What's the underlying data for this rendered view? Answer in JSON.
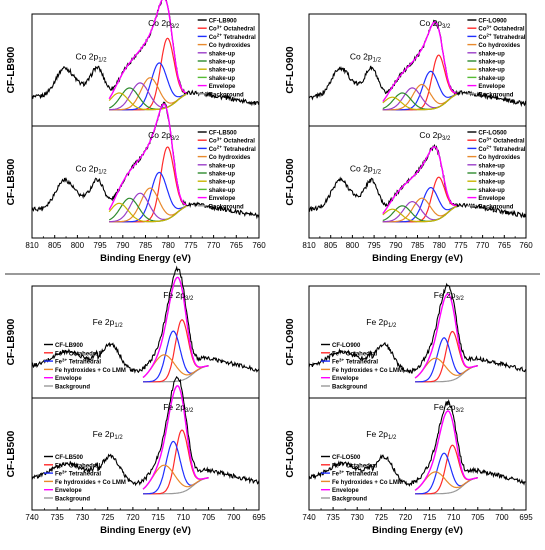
{
  "colors": {
    "data": "#000000",
    "octahedral": "#ff2a2a",
    "tetrahedral": "#1f2fff",
    "hydroxides": "#e8892c",
    "shakeup": [
      "#9b3fc8",
      "#2e8b2e",
      "#c8b400",
      "#55bb33"
    ],
    "envelope": "#ff00ff",
    "background": "#9a9a9a"
  },
  "chart_data": [
    {
      "type": "line",
      "element": "Co",
      "xlabel": "Binding Energy (eV)",
      "xlim": [
        810,
        760
      ],
      "ticks": [
        "810",
        "805",
        "800",
        "795",
        "790",
        "785",
        "780",
        "775",
        "770",
        "765",
        "760"
      ],
      "panels": [
        {
          "ylabel": "CF-LB900",
          "peak_labels": [
            {
              "text": "Co 2p",
              "sub": "1/2",
              "x": 797
            },
            {
              "text": "Co 2p",
              "sub": "3/2",
              "x": 781
            }
          ],
          "legend": [
            "CF-LB900",
            "Co3+ Octahedral",
            "Co2+ Tetrahedral",
            "Co hydroxides",
            "shake-up",
            "shake-up",
            "shake-up",
            "shake-up",
            "Envelope",
            "Background"
          ],
          "peaks": [
            {
              "role": "octahedral",
              "center": 780.2,
              "width": 1.5,
              "height": 0.82
            },
            {
              "role": "tetrahedral",
              "center": 782.0,
              "width": 1.8,
              "height": 0.55
            },
            {
              "role": "hydroxides",
              "center": 784.0,
              "width": 2.0,
              "height": 0.38
            },
            {
              "role": "shakeup1",
              "center": 786.2,
              "width": 2.0,
              "height": 0.32
            },
            {
              "role": "shakeup2",
              "center": 788.5,
              "width": 2.0,
              "height": 0.26
            },
            {
              "role": "shakeup3",
              "center": 790.8,
              "width": 2.0,
              "height": 0.2
            }
          ]
        },
        {
          "ylabel": "CF-LB500",
          "peak_labels": [
            {
              "text": "Co 2p",
              "sub": "1/2",
              "x": 797
            },
            {
              "text": "Co 2p",
              "sub": "3/2",
              "x": 781
            }
          ],
          "legend": [
            "CF-LB500",
            "Co3+ Octahedral",
            "Co2+ Tetrahedral",
            "Co hydroxides",
            "shake-up",
            "shake-up",
            "shake-up",
            "shake-up",
            "Envelope",
            "Background"
          ],
          "peaks": [
            {
              "role": "octahedral",
              "center": 780.2,
              "width": 1.5,
              "height": 0.86
            },
            {
              "role": "tetrahedral",
              "center": 782.0,
              "width": 1.8,
              "height": 0.58
            },
            {
              "role": "hydroxides",
              "center": 784.0,
              "width": 2.0,
              "height": 0.4
            },
            {
              "role": "shakeup1",
              "center": 786.2,
              "width": 2.0,
              "height": 0.34
            },
            {
              "role": "shakeup2",
              "center": 788.5,
              "width": 2.0,
              "height": 0.28
            },
            {
              "role": "shakeup3",
              "center": 790.8,
              "width": 2.0,
              "height": 0.22
            }
          ]
        },
        {
          "ylabel": "CF-LO900",
          "peak_labels": [
            {
              "text": "Co 2p",
              "sub": "1/2",
              "x": 797
            },
            {
              "text": "Co 2p",
              "sub": "3/2",
              "x": 781
            }
          ],
          "legend": [
            "CF-LO900",
            "Co3+ Octahedral",
            "Co2+ Tetrahedral",
            "Co hydroxides",
            "shake-up",
            "shake-up",
            "shake-up",
            "shake-up",
            "Envelope",
            "Background"
          ],
          "peaks": [
            {
              "role": "octahedral",
              "center": 780.2,
              "width": 1.5,
              "height": 0.62
            },
            {
              "role": "tetrahedral",
              "center": 782.0,
              "width": 1.8,
              "height": 0.45
            },
            {
              "role": "hydroxides",
              "center": 784.0,
              "width": 2.0,
              "height": 0.3
            },
            {
              "role": "shakeup1",
              "center": 786.2,
              "width": 2.0,
              "height": 0.26
            },
            {
              "role": "shakeup2",
              "center": 788.5,
              "width": 2.0,
              "height": 0.2
            },
            {
              "role": "shakeup3",
              "center": 790.8,
              "width": 2.0,
              "height": 0.15
            }
          ]
        },
        {
          "ylabel": "CF-LO500",
          "peak_labels": [
            {
              "text": "Co 2p",
              "sub": "1/2",
              "x": 797
            },
            {
              "text": "Co 2p",
              "sub": "3/2",
              "x": 781
            }
          ],
          "legend": [
            "CF-LO500",
            "Co3+ Octahedral",
            "Co2+ Tetrahedral",
            "Co hydroxides",
            "shake-up",
            "shake-up",
            "shake-up",
            "shake-up",
            "Envelope",
            "Background"
          ],
          "peaks": [
            {
              "role": "octahedral",
              "center": 780.2,
              "width": 1.5,
              "height": 0.5
            },
            {
              "role": "tetrahedral",
              "center": 782.0,
              "width": 1.8,
              "height": 0.4
            },
            {
              "role": "hydroxides",
              "center": 784.0,
              "width": 2.0,
              "height": 0.28
            },
            {
              "role": "shakeup1",
              "center": 786.2,
              "width": 2.0,
              "height": 0.24
            },
            {
              "role": "shakeup2",
              "center": 788.5,
              "width": 2.0,
              "height": 0.19
            },
            {
              "role": "shakeup3",
              "center": 790.8,
              "width": 2.0,
              "height": 0.15
            }
          ]
        }
      ]
    },
    {
      "type": "line",
      "element": "Fe",
      "xlabel": "Binding Energy (eV)",
      "xlim": [
        740,
        695
      ],
      "ticks": [
        "740",
        "735",
        "730",
        "725",
        "720",
        "715",
        "710",
        "705",
        "700",
        "695"
      ],
      "panels": [
        {
          "ylabel": "CF-LB900",
          "peak_labels": [
            {
              "text": "Fe 2p",
              "sub": "1/2",
              "x": 725
            },
            {
              "text": "Fe 2p",
              "sub": "3/2",
              "x": 711
            }
          ],
          "legend": [
            "CF-LB900",
            "Fe3+ Octahedral",
            "Fe3+ Tetrahedral",
            "Fe hydroxides + Co LMM",
            "Envelope",
            "Background"
          ],
          "peaks": [
            {
              "role": "octahedral",
              "center": 710.3,
              "width": 1.3,
              "height": 0.72
            },
            {
              "role": "tetrahedral",
              "center": 712.0,
              "width": 1.4,
              "height": 0.6
            },
            {
              "role": "hydroxides",
              "center": 713.8,
              "width": 2.2,
              "height": 0.32
            }
          ]
        },
        {
          "ylabel": "CF-LB500",
          "peak_labels": [
            {
              "text": "Fe 2p",
              "sub": "1/2",
              "x": 725
            },
            {
              "text": "Fe 2p",
              "sub": "3/2",
              "x": 711
            }
          ],
          "legend": [
            "CF-LB500",
            "Fe3+ Octahedral",
            "Fe3+ Tetrahedral",
            "Fe hydroxides + Co LMM",
            "Envelope",
            "Background"
          ],
          "peaks": [
            {
              "role": "octahedral",
              "center": 710.3,
              "width": 1.3,
              "height": 0.74
            },
            {
              "role": "tetrahedral",
              "center": 712.0,
              "width": 1.4,
              "height": 0.62
            },
            {
              "role": "hydroxides",
              "center": 713.8,
              "width": 2.2,
              "height": 0.34
            }
          ]
        },
        {
          "ylabel": "CF-LO900",
          "peak_labels": [
            {
              "text": "Fe 2p",
              "sub": "1/2",
              "x": 725
            },
            {
              "text": "Fe 2p",
              "sub": "3/2",
              "x": 711
            }
          ],
          "legend": [
            "CF-LO900",
            "Fe3+ Octahedral",
            "Fe3+ Tetrahedral",
            "Fe hydroxides + Co LMM",
            "Envelope",
            "Background"
          ],
          "peaks": [
            {
              "role": "octahedral",
              "center": 710.3,
              "width": 1.3,
              "height": 0.58
            },
            {
              "role": "tetrahedral",
              "center": 712.0,
              "width": 1.4,
              "height": 0.52
            },
            {
              "role": "hydroxides",
              "center": 713.8,
              "width": 2.2,
              "height": 0.28
            }
          ]
        },
        {
          "ylabel": "CF-LO500",
          "peak_labels": [
            {
              "text": "Fe 2p",
              "sub": "1/2",
              "x": 725
            },
            {
              "text": "Fe 2p",
              "sub": "3/2",
              "x": 711
            }
          ],
          "legend": [
            "CF-LO500",
            "Fe3+ Octahedral",
            "Fe3+ Tetrahedral",
            "Fe hydroxides + Co LMM",
            "Envelope",
            "Background"
          ],
          "peaks": [
            {
              "role": "octahedral",
              "center": 710.3,
              "width": 1.3,
              "height": 0.56
            },
            {
              "role": "tetrahedral",
              "center": 712.0,
              "width": 1.4,
              "height": 0.48
            },
            {
              "role": "hydroxides",
              "center": 713.8,
              "width": 2.2,
              "height": 0.26
            }
          ]
        }
      ]
    }
  ]
}
